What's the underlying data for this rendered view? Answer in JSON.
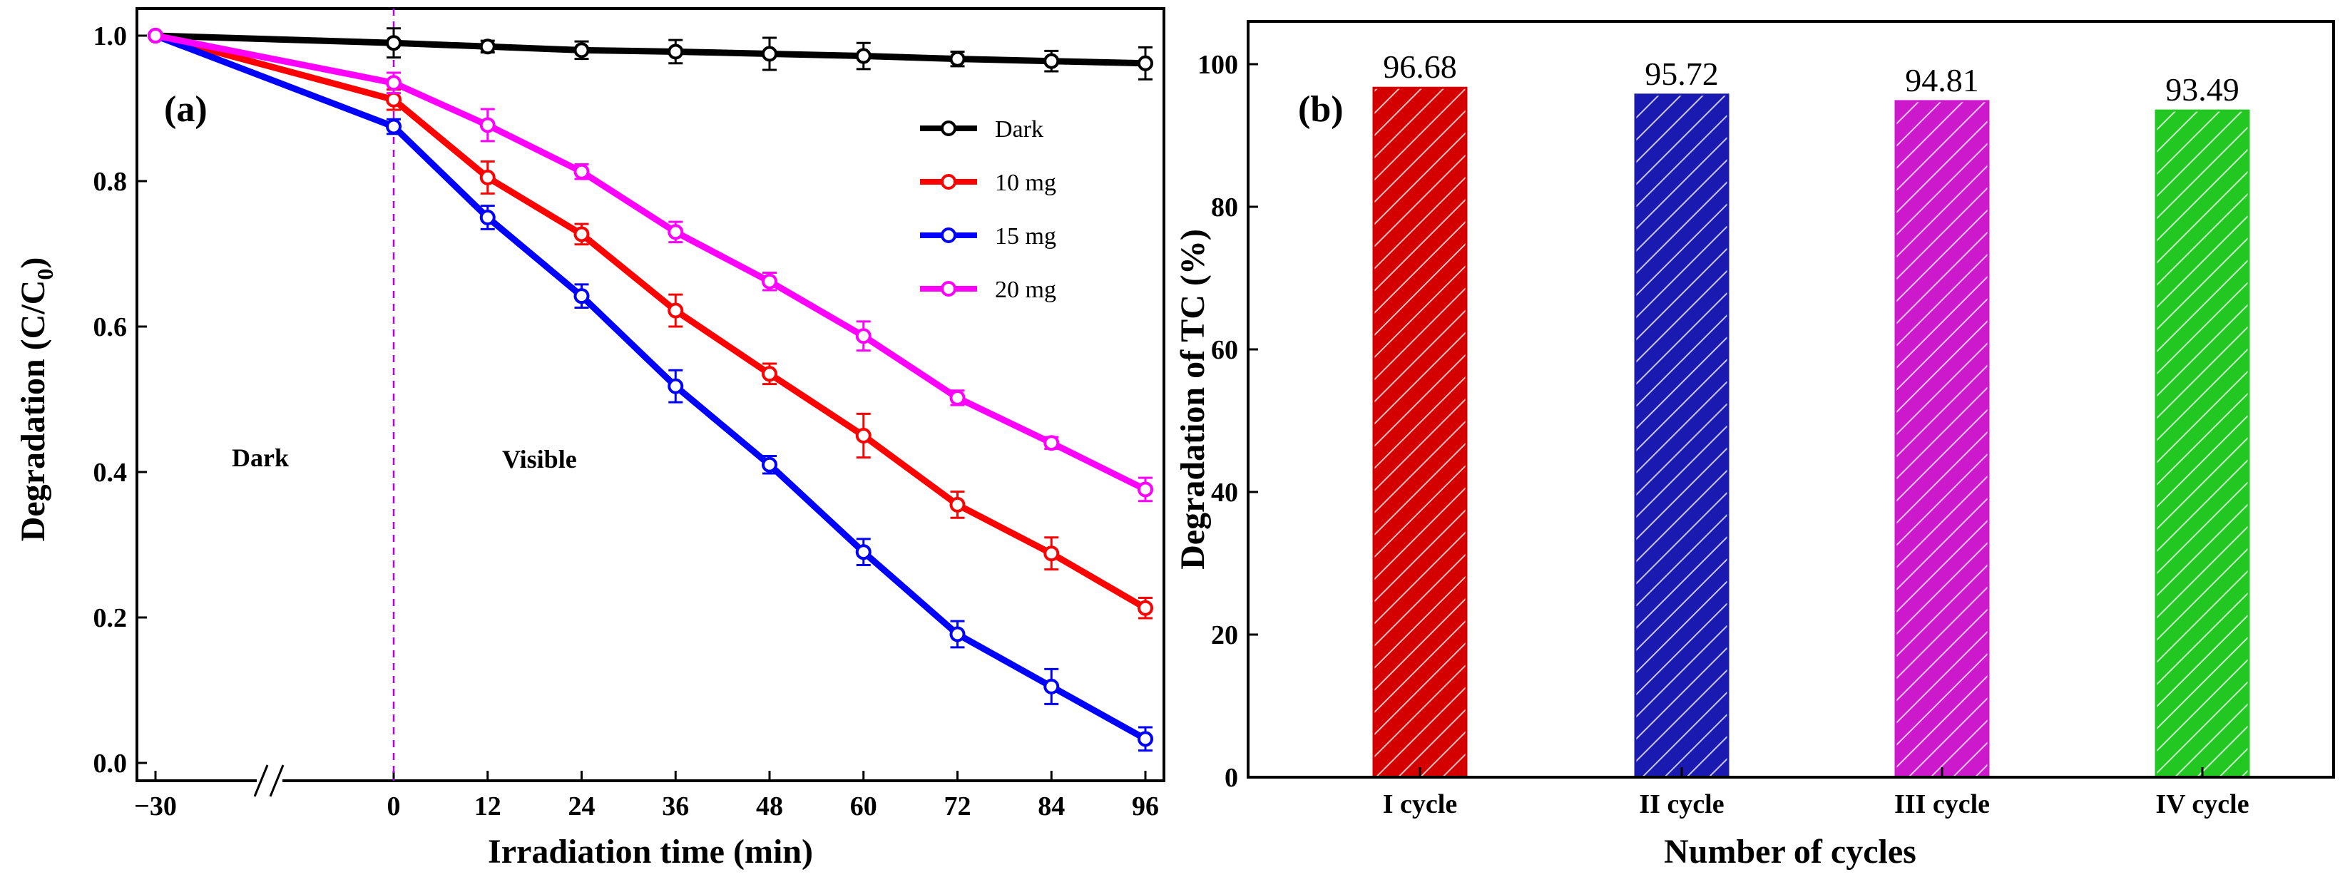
{
  "chart_data": [
    {
      "panel": "(a)",
      "type": "line",
      "xlabel": "Irradiation time (min)",
      "ylabel_main": "Degradation (C/C",
      "ylabel_sub": "0",
      "ylabel_close": ")",
      "xlim": [
        -30,
        96
      ],
      "ylim": [
        0.0,
        1.0
      ],
      "x_ticks": [
        -30,
        0,
        12,
        24,
        36,
        48,
        60,
        72,
        84,
        96
      ],
      "x_tick_labels": [
        "−30",
        "0",
        "12",
        "24",
        "36",
        "48",
        "60",
        "72",
        "84",
        "96"
      ],
      "y_ticks": [
        0.0,
        0.2,
        0.4,
        0.6,
        0.8,
        1.0
      ],
      "y_tick_labels": [
        "0.0",
        "0.2",
        "0.4",
        "0.6",
        "0.8",
        "1.0"
      ],
      "axis_break": "//",
      "regions": [
        {
          "label": "Dark"
        },
        {
          "label": "Visible"
        }
      ],
      "divider_x": 0,
      "legend_position": "top-right",
      "x": [
        -30,
        0,
        12,
        24,
        36,
        48,
        60,
        72,
        84,
        96
      ],
      "series": [
        {
          "name": "Dark",
          "color": "#000000",
          "values": [
            1.0,
            0.99,
            0.985,
            0.98,
            0.978,
            0.975,
            0.972,
            0.968,
            0.965,
            0.962
          ],
          "errors": [
            0,
            0.02,
            0.008,
            0.012,
            0.016,
            0.022,
            0.018,
            0.01,
            0.014,
            0.022
          ]
        },
        {
          "name": "10 mg",
          "color": "#ff0000",
          "values": [
            1.0,
            0.912,
            0.805,
            0.727,
            0.622,
            0.535,
            0.45,
            0.355,
            0.288,
            0.213
          ],
          "errors": [
            0,
            0.014,
            0.022,
            0.014,
            0.022,
            0.014,
            0.03,
            0.018,
            0.022,
            0.014
          ]
        },
        {
          "name": "15 mg",
          "color": "#0000ff",
          "values": [
            1.0,
            0.875,
            0.75,
            0.642,
            0.518,
            0.41,
            0.29,
            0.177,
            0.105,
            0.033
          ],
          "errors": [
            0,
            0.01,
            0.016,
            0.016,
            0.022,
            0.012,
            0.018,
            0.018,
            0.024,
            0.016
          ]
        },
        {
          "name": "20 mg",
          "color": "#ff00ff",
          "values": [
            1.0,
            0.935,
            0.877,
            0.813,
            0.73,
            0.662,
            0.587,
            0.502,
            0.44,
            0.376
          ],
          "errors": [
            0,
            0.014,
            0.022,
            0.01,
            0.014,
            0.012,
            0.02,
            0.01,
            0.008,
            0.016
          ]
        }
      ]
    },
    {
      "panel": "(b)",
      "type": "bar",
      "xlabel": "Number of cycles",
      "ylabel": "Degradation of TC (%)",
      "ylim": [
        0,
        105
      ],
      "y_ticks": [
        0,
        20,
        40,
        60,
        80,
        100
      ],
      "y_tick_labels": [
        "0",
        "20",
        "40",
        "60",
        "80",
        "100"
      ],
      "categories": [
        "I cycle",
        "II cycle",
        "III cycle",
        "IV cycle"
      ],
      "values": [
        96.68,
        95.72,
        94.81,
        93.49
      ],
      "value_labels": [
        "96.68",
        "95.72",
        "94.81",
        "93.49"
      ],
      "colors": [
        "#d40000",
        "#1a1ab0",
        "#cc19cc",
        "#22c722"
      ]
    }
  ]
}
